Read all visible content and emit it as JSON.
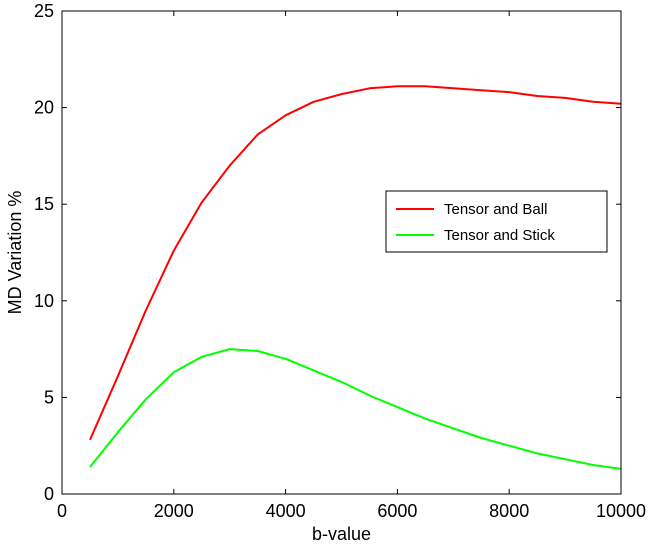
{
  "chart_data": {
    "type": "line",
    "xlabel": "b-value",
    "ylabel": "MD Variation %",
    "xlim": [
      0,
      10000
    ],
    "ylim": [
      0,
      25
    ],
    "xticks": [
      0,
      2000,
      4000,
      6000,
      8000,
      10000
    ],
    "xtick_labels": [
      "0",
      "2000",
      "4000",
      "6000",
      "8000",
      "10000"
    ],
    "yticks": [
      0,
      5,
      10,
      15,
      20,
      25
    ],
    "ytick_labels": [
      "0",
      "5",
      "10",
      "15",
      "20",
      "25"
    ],
    "grid": false,
    "legend_position": "right",
    "series": [
      {
        "name": "Tensor and Ball",
        "color": "#ff0000",
        "x": [
          500,
          1000,
          1500,
          2000,
          2500,
          3000,
          3500,
          4000,
          4500,
          5000,
          5500,
          6000,
          6500,
          7000,
          7500,
          8000,
          8500,
          9000,
          9500,
          10000
        ],
        "y": [
          2.8,
          6.1,
          9.5,
          12.6,
          15.1,
          17.0,
          18.6,
          19.6,
          20.3,
          20.7,
          21.0,
          21.1,
          21.1,
          21.0,
          20.9,
          20.8,
          20.6,
          20.5,
          20.3,
          20.2
        ]
      },
      {
        "name": "Tensor and Stick",
        "color": "#00ff00",
        "x": [
          500,
          1000,
          1500,
          2000,
          2500,
          3000,
          3500,
          4000,
          4500,
          5000,
          5500,
          6000,
          6500,
          7000,
          7500,
          8000,
          8500,
          9000,
          9500,
          10000
        ],
        "y": [
          1.4,
          3.2,
          4.9,
          6.3,
          7.1,
          7.5,
          7.4,
          7.0,
          6.4,
          5.8,
          5.1,
          4.5,
          3.9,
          3.4,
          2.9,
          2.5,
          2.1,
          1.8,
          1.5,
          1.3
        ]
      }
    ]
  }
}
